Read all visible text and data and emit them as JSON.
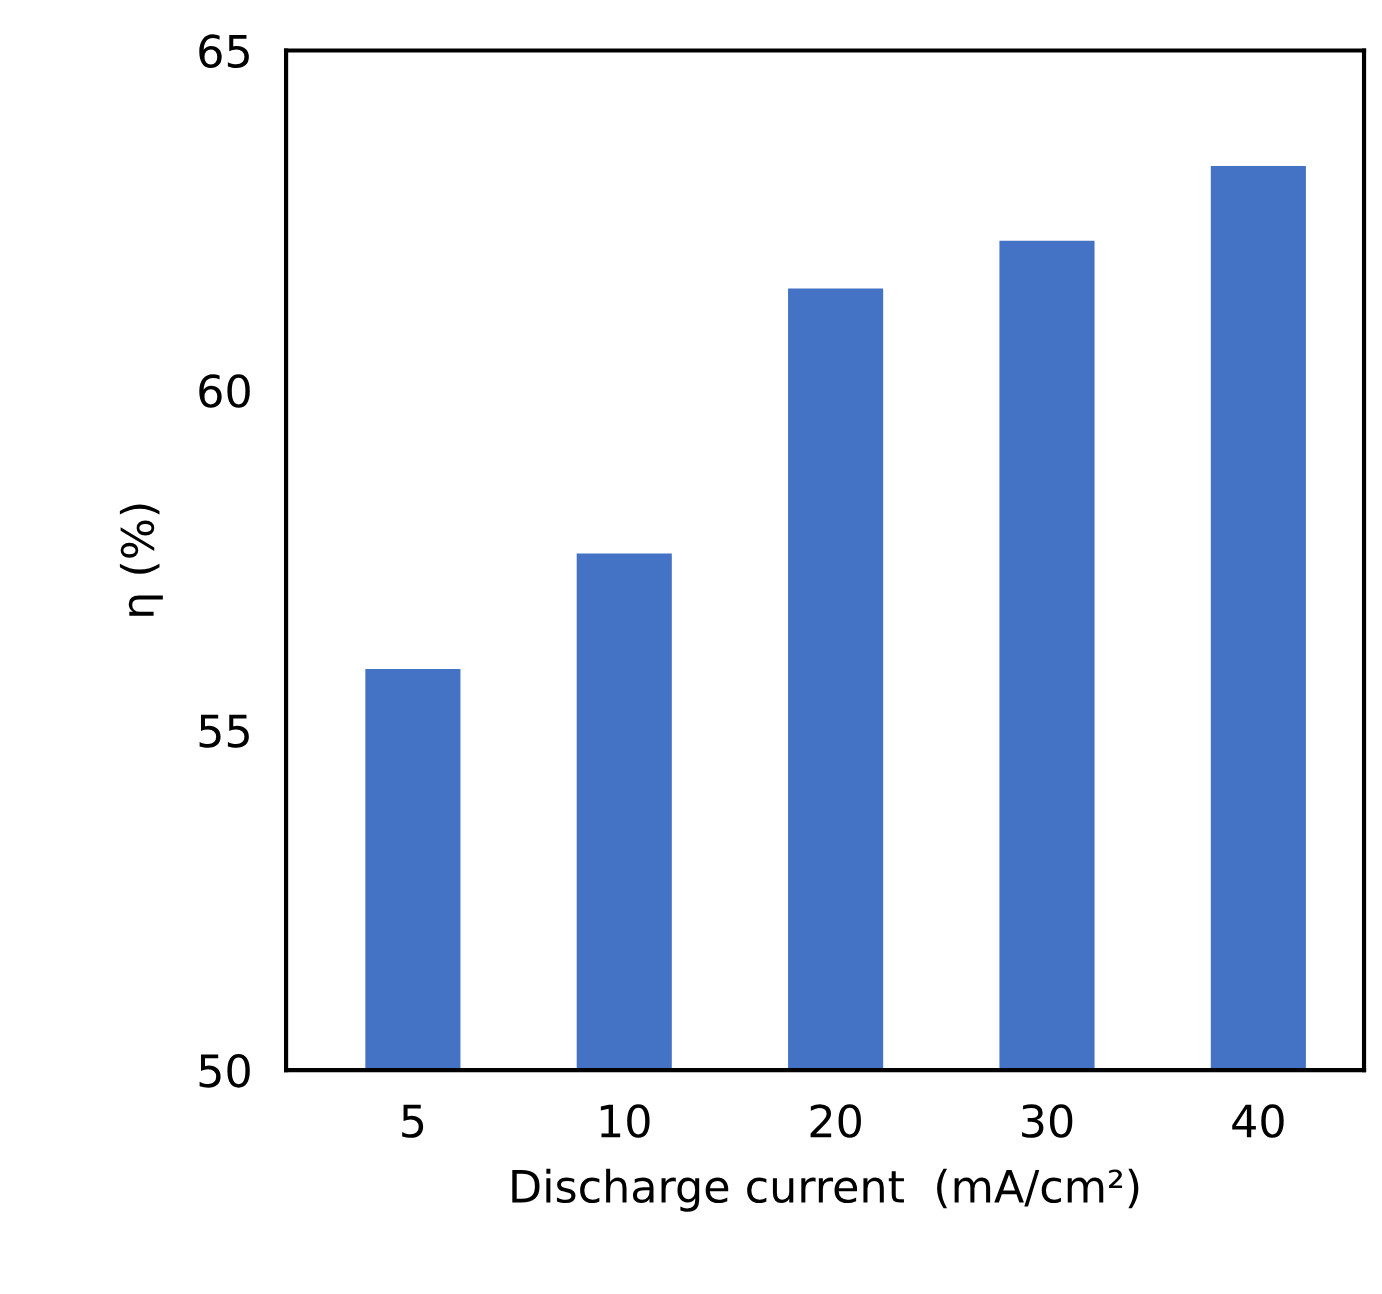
{
  "chart_data": {
    "type": "bar",
    "xlabel": "Discharge current  (mA/cm²)",
    "ylabel": "η (%)",
    "categories": [
      "5",
      "10",
      "20",
      "30",
      "40"
    ],
    "values": [
      55.9,
      57.6,
      61.5,
      62.2,
      63.3
    ],
    "color": "#4472c4",
    "ylim": [
      50,
      65
    ],
    "yticks": [
      50,
      55,
      60,
      65
    ],
    "grid": false
  }
}
